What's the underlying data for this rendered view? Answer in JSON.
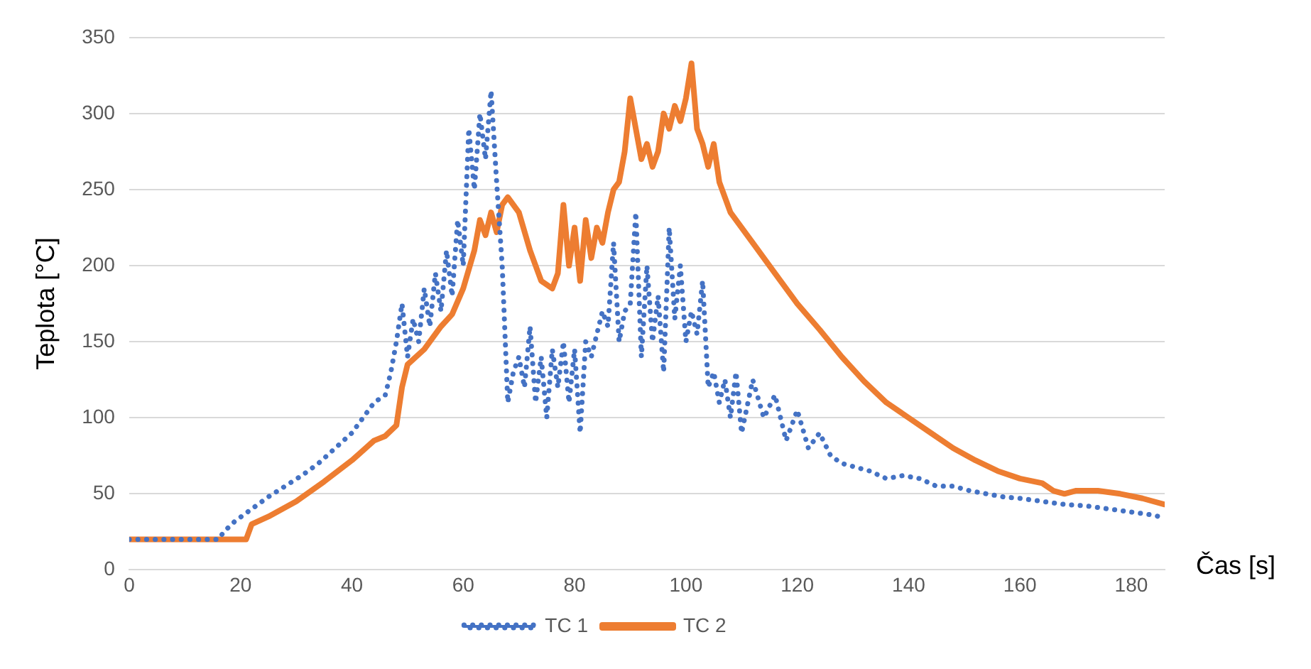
{
  "chart_data": {
    "type": "line",
    "xlabel": "Čas [s]",
    "ylabel": "Teplota [°C]",
    "xlim": [
      0,
      186
    ],
    "xticks": [
      0,
      20,
      40,
      60,
      80,
      100,
      120,
      140,
      160,
      180
    ],
    "ylim": [
      0,
      350
    ],
    "yticks": [
      0,
      50,
      100,
      150,
      200,
      250,
      300,
      350
    ],
    "grid": "y",
    "legend": "bottom",
    "marker": "none",
    "series": [
      {
        "name": "TC 1",
        "color": "#4472c4",
        "line_style": "dotted",
        "x": [
          0,
          16,
          17,
          19,
          22,
          25,
          28,
          31,
          34,
          37,
          40,
          42,
          44,
          46,
          47,
          48,
          49,
          50,
          51,
          52,
          53,
          54,
          55,
          56,
          57,
          58,
          59,
          60,
          61,
          62,
          63,
          64,
          65,
          66,
          67,
          68,
          69,
          70,
          71,
          72,
          73,
          74,
          75,
          76,
          77,
          78,
          79,
          80,
          81,
          82,
          83,
          84,
          85,
          86,
          87,
          88,
          89,
          90,
          91,
          92,
          93,
          94,
          95,
          96,
          97,
          98,
          99,
          100,
          101,
          102,
          103,
          104,
          105,
          106,
          107,
          108,
          109,
          110,
          112,
          114,
          116,
          118,
          120,
          122,
          124,
          126,
          128,
          130,
          133,
          136,
          139,
          142,
          145,
          148,
          151,
          154,
          157,
          160,
          164,
          168,
          172,
          176,
          180,
          184,
          186
        ],
        "values": [
          20,
          20,
          25,
          32,
          40,
          48,
          55,
          62,
          70,
          80,
          90,
          100,
          110,
          115,
          130,
          150,
          175,
          140,
          165,
          150,
          185,
          160,
          195,
          170,
          210,
          180,
          230,
          200,
          290,
          250,
          300,
          270,
          315,
          255,
          200,
          110,
          130,
          140,
          120,
          160,
          110,
          140,
          100,
          145,
          120,
          150,
          110,
          145,
          90,
          150,
          140,
          155,
          170,
          160,
          215,
          150,
          170,
          175,
          235,
          140,
          200,
          150,
          180,
          130,
          225,
          165,
          200,
          150,
          170,
          155,
          190,
          120,
          130,
          110,
          125,
          100,
          130,
          90,
          125,
          100,
          115,
          85,
          105,
          80,
          90,
          75,
          70,
          68,
          65,
          60,
          62,
          60,
          55,
          55,
          52,
          50,
          48,
          47,
          45,
          43,
          42,
          40,
          38,
          36,
          34
        ]
      },
      {
        "name": "TC 2",
        "color": "#ed7d31",
        "line_style": "solid",
        "x": [
          0,
          21,
          22,
          25,
          30,
          35,
          40,
          44,
          46,
          48,
          49,
          50,
          53,
          56,
          58,
          60,
          62,
          63,
          64,
          65,
          66,
          67,
          68,
          70,
          72,
          74,
          76,
          77,
          78,
          79,
          80,
          81,
          82,
          83,
          84,
          85,
          86,
          87,
          88,
          89,
          90,
          91,
          92,
          93,
          94,
          95,
          96,
          97,
          98,
          99,
          100,
          101,
          102,
          103,
          104,
          105,
          106,
          108,
          112,
          116,
          120,
          124,
          128,
          132,
          136,
          140,
          144,
          148,
          152,
          156,
          160,
          164,
          166,
          168,
          170,
          174,
          178,
          182,
          186
        ],
        "values": [
          20,
          20,
          30,
          35,
          45,
          58,
          72,
          85,
          88,
          95,
          120,
          135,
          145,
          160,
          168,
          185,
          210,
          230,
          220,
          235,
          222,
          240,
          245,
          235,
          210,
          190,
          185,
          195,
          240,
          200,
          225,
          190,
          230,
          205,
          225,
          215,
          235,
          250,
          255,
          275,
          310,
          290,
          270,
          280,
          265,
          275,
          300,
          290,
          305,
          295,
          310,
          333,
          290,
          280,
          265,
          280,
          255,
          235,
          215,
          195,
          175,
          158,
          140,
          124,
          110,
          100,
          90,
          80,
          72,
          65,
          60,
          57,
          52,
          50,
          52,
          52,
          50,
          47,
          43
        ]
      }
    ]
  }
}
